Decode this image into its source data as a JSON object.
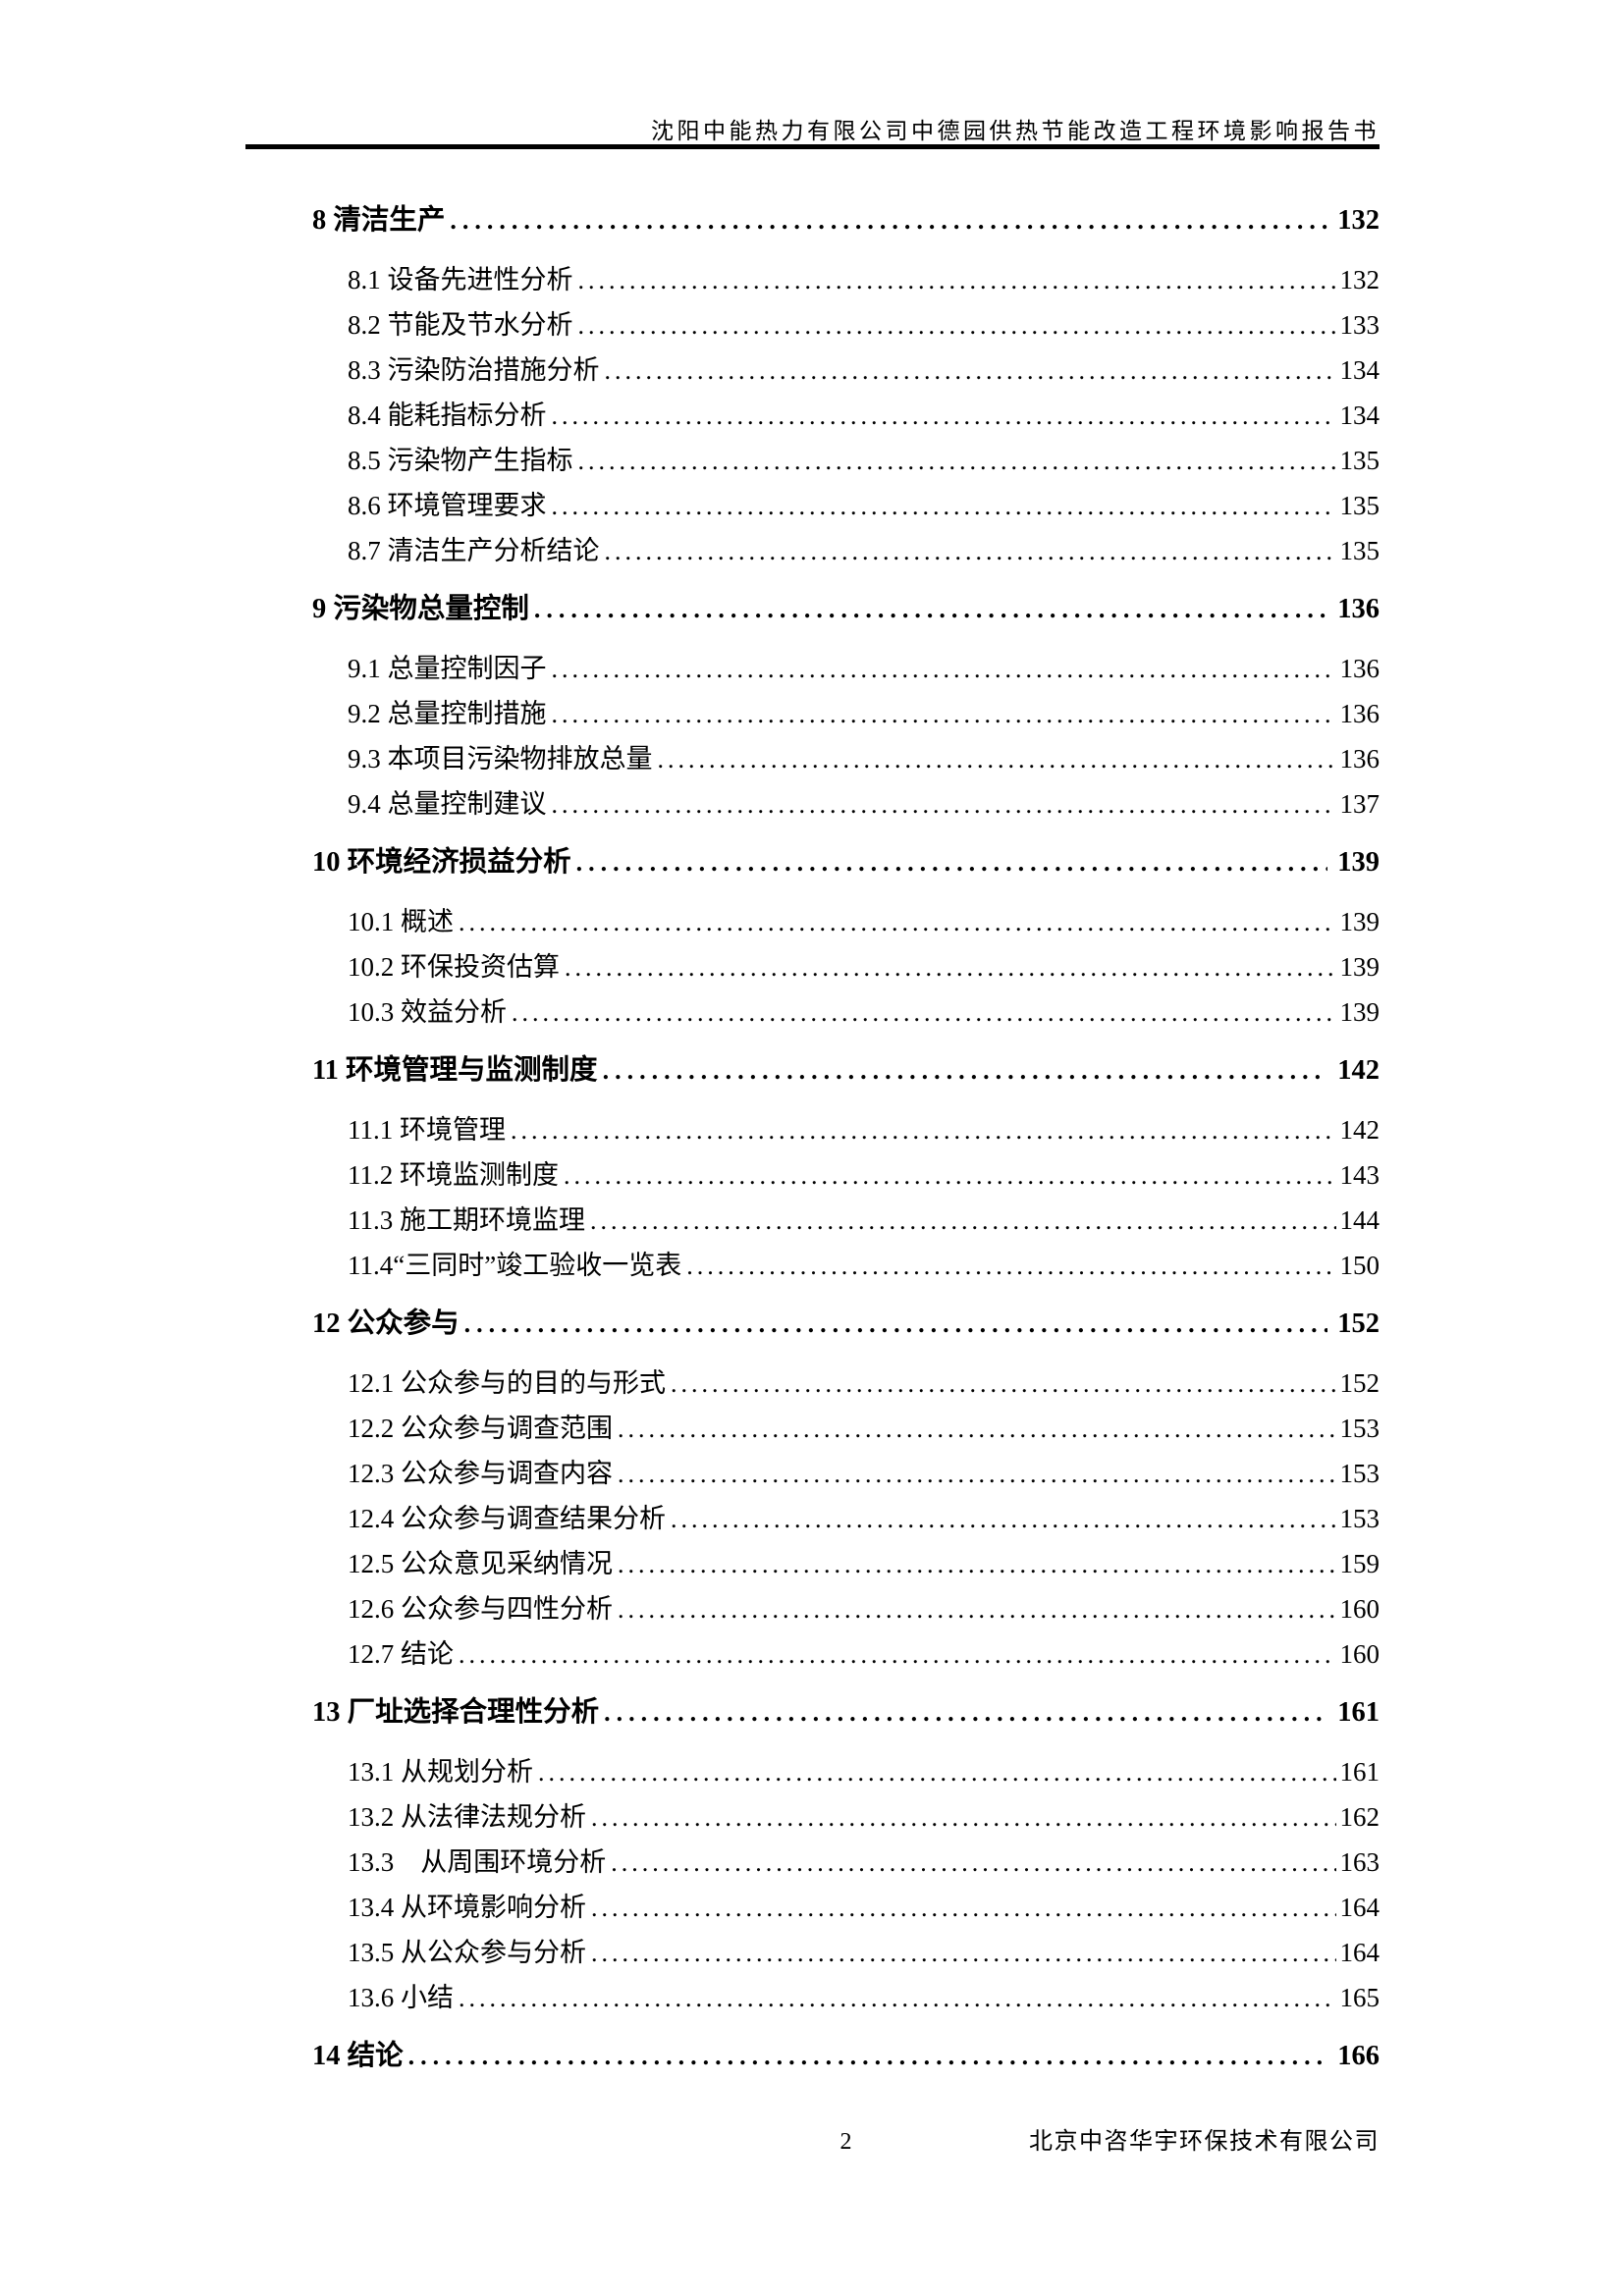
{
  "header": {
    "title": "沈阳中能热力有限公司中德园供热节能改造工程环境影响报告书"
  },
  "toc": {
    "entries": [
      {
        "level": 1,
        "label": "8 清洁生产",
        "page": "132"
      },
      {
        "level": 2,
        "label": "8.1 设备先进性分析",
        "page": "132"
      },
      {
        "level": 2,
        "label": "8.2 节能及节水分析",
        "page": "133"
      },
      {
        "level": 2,
        "label": "8.3 污染防治措施分析",
        "page": "134"
      },
      {
        "level": 2,
        "label": "8.4 能耗指标分析",
        "page": "134"
      },
      {
        "level": 2,
        "label": "8.5 污染物产生指标",
        "page": "135"
      },
      {
        "level": 2,
        "label": "8.6 环境管理要求",
        "page": "135"
      },
      {
        "level": 2,
        "label": "8.7 清洁生产分析结论",
        "page": "135"
      },
      {
        "level": 1,
        "label": "9 污染物总量控制",
        "page": "136"
      },
      {
        "level": 2,
        "label": "9.1 总量控制因子",
        "page": "136"
      },
      {
        "level": 2,
        "label": "9.2 总量控制措施",
        "page": "136"
      },
      {
        "level": 2,
        "label": "9.3 本项目污染物排放总量",
        "page": "136"
      },
      {
        "level": 2,
        "label": "9.4 总量控制建议",
        "page": "137"
      },
      {
        "level": 1,
        "label": "10 环境经济损益分析",
        "page": "139"
      },
      {
        "level": 2,
        "label": "10.1 概述",
        "page": "139"
      },
      {
        "level": 2,
        "label": "10.2 环保投资估算",
        "page": "139"
      },
      {
        "level": 2,
        "label": "10.3 效益分析",
        "page": "139"
      },
      {
        "level": 1,
        "label": "11 环境管理与监测制度",
        "page": "142"
      },
      {
        "level": 2,
        "label": "11.1 环境管理",
        "page": "142"
      },
      {
        "level": 2,
        "label": "11.2 环境监测制度",
        "page": "143"
      },
      {
        "level": 2,
        "label": "11.3 施工期环境监理",
        "page": "144"
      },
      {
        "level": 2,
        "label": "11.4“三同时”竣工验收一览表",
        "page": "150"
      },
      {
        "level": 1,
        "label": "12 公众参与",
        "page": "152"
      },
      {
        "level": 2,
        "label": "12.1 公众参与的目的与形式",
        "page": "152"
      },
      {
        "level": 2,
        "label": "12.2 公众参与调查范围",
        "page": "153"
      },
      {
        "level": 2,
        "label": "12.3 公众参与调查内容",
        "page": "153"
      },
      {
        "level": 2,
        "label": "12.4 公众参与调查结果分析",
        "page": "153"
      },
      {
        "level": 2,
        "label": "12.5 公众意见采纳情况",
        "page": "159"
      },
      {
        "level": 2,
        "label": "12.6 公众参与四性分析",
        "page": "160"
      },
      {
        "level": 2,
        "label": "12.7 结论",
        "page": "160"
      },
      {
        "level": 1,
        "label": "13 厂址选择合理性分析",
        "page": "161"
      },
      {
        "level": 2,
        "label": "13.1 从规划分析",
        "page": "161"
      },
      {
        "level": 2,
        "label": "13.2 从法律法规分析",
        "page": "162"
      },
      {
        "level": 2,
        "label": "13.3　从周围环境分析",
        "page": "163"
      },
      {
        "level": 2,
        "label": "13.4 从环境影响分析",
        "page": "164"
      },
      {
        "level": 2,
        "label": "13.5 从公众参与分析",
        "page": "164"
      },
      {
        "level": 2,
        "label": "13.6 小结",
        "page": "165"
      },
      {
        "level": 1,
        "label": "14 结论",
        "page": "166"
      }
    ]
  },
  "footer": {
    "page_number": "2",
    "company": "北京中咨华宇环保技术有限公司"
  },
  "colors": {
    "text": "#000000",
    "background": "#ffffff"
  }
}
